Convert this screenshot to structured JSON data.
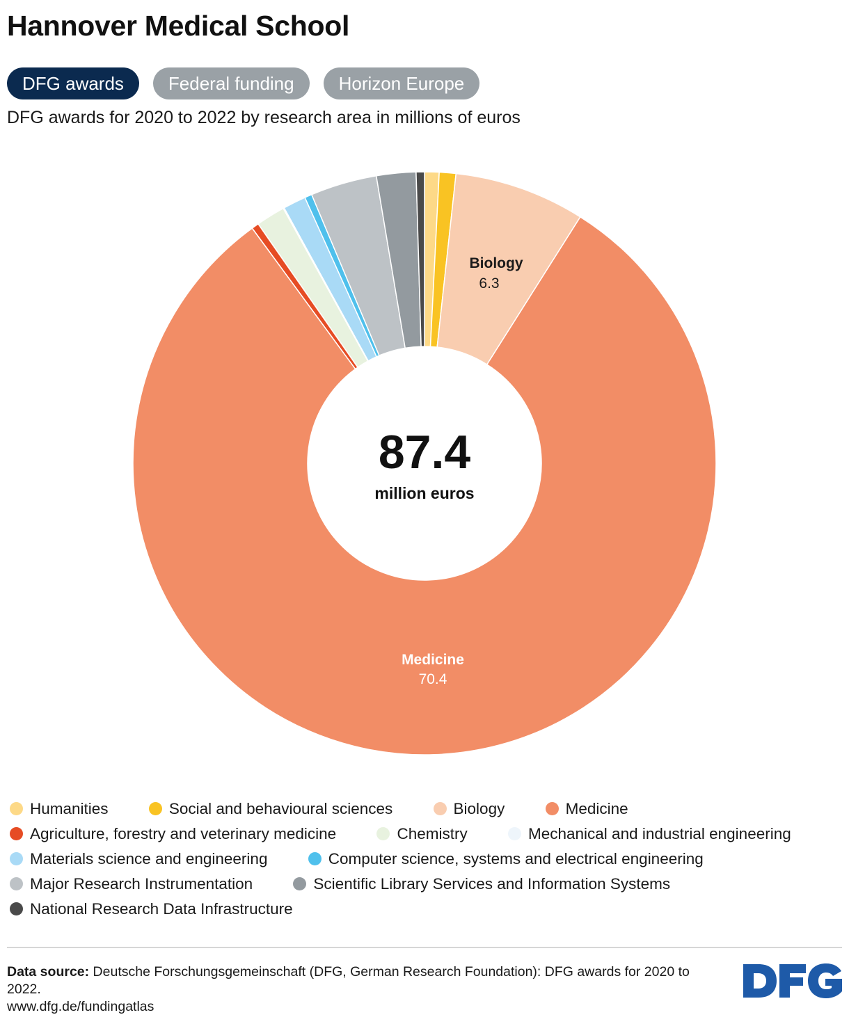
{
  "title": "Hannover Medical School",
  "tabs": [
    {
      "label": "DFG awards",
      "active": true
    },
    {
      "label": "Federal funding",
      "active": false
    },
    {
      "label": "Horizon Europe",
      "active": false
    }
  ],
  "subtitle": "DFG awards for 2020 to 2022 by research area in millions of euros",
  "center": {
    "value": "87.4",
    "unit": "million euros"
  },
  "chart_data": {
    "type": "pie",
    "total": 87.4,
    "slices": [
      {
        "name": "Humanities",
        "value": 0.7,
        "color": "#fdd987"
      },
      {
        "name": "Social and behavioural sciences",
        "value": 0.8,
        "color": "#f9c323"
      },
      {
        "name": "Biology",
        "value": 6.3,
        "color": "#f9cdb0",
        "label": "Biology",
        "value_label": "6.3"
      },
      {
        "name": "Medicine",
        "value": 70.4,
        "color": "#f28d66",
        "label": "Medicine",
        "value_label": "70.4"
      },
      {
        "name": "Agriculture, forestry and veterinary medicine",
        "value": 0.35,
        "color": "#e64c24"
      },
      {
        "name": "Chemistry",
        "value": 1.4,
        "color": "#e8f2df"
      },
      {
        "name": "Mechanical and industrial engineering",
        "value": 0.05,
        "color": "#eef5fb"
      },
      {
        "name": "Materials science and engineering",
        "value": 1.1,
        "color": "#a9daf6"
      },
      {
        "name": "Computer science, systems and electrical engineering",
        "value": 0.35,
        "color": "#4fc0ec"
      },
      {
        "name": "Major Research Instrumentation",
        "value": 3.2,
        "color": "#bdc2c6"
      },
      {
        "name": "Scientific Library Services and Information Systems",
        "value": 1.9,
        "color": "#939a9f"
      },
      {
        "name": "National Research Data Infrastructure",
        "value": 0.4,
        "color": "#4a4a4a"
      }
    ]
  },
  "legend": [
    {
      "label": "Humanities",
      "color": "#fdd987"
    },
    {
      "label": "Social and behavioural sciences",
      "color": "#f9c323"
    },
    {
      "label": "Biology",
      "color": "#f9cdb0"
    },
    {
      "label": "Medicine",
      "color": "#f28d66"
    },
    {
      "label": "Agriculture, forestry and veterinary medicine",
      "color": "#e64c24"
    },
    {
      "label": "Chemistry",
      "color": "#e8f2df"
    },
    {
      "label": "Mechanical and industrial engineering",
      "color": "#eef5fb"
    },
    {
      "label": "Materials science and engineering",
      "color": "#a9daf6"
    },
    {
      "label": "Computer science, systems and electrical engineering",
      "color": "#4fc0ec"
    },
    {
      "label": "Major Research Instrumentation",
      "color": "#bdc2c6"
    },
    {
      "label": "Scientific Library Services and Information Systems",
      "color": "#939a9f"
    },
    {
      "label": "National Research Data Infrastructure",
      "color": "#4a4a4a"
    }
  ],
  "source": {
    "label": "Data source:",
    "text": "Deutsche Forschungsgemeinschaft (DFG, German Research Foundation): DFG awards for 2020 to 2022.",
    "url": "www.dfg.de/fundingatlas"
  },
  "logo": {
    "text": "DFG",
    "color": "#1e5aa8"
  }
}
